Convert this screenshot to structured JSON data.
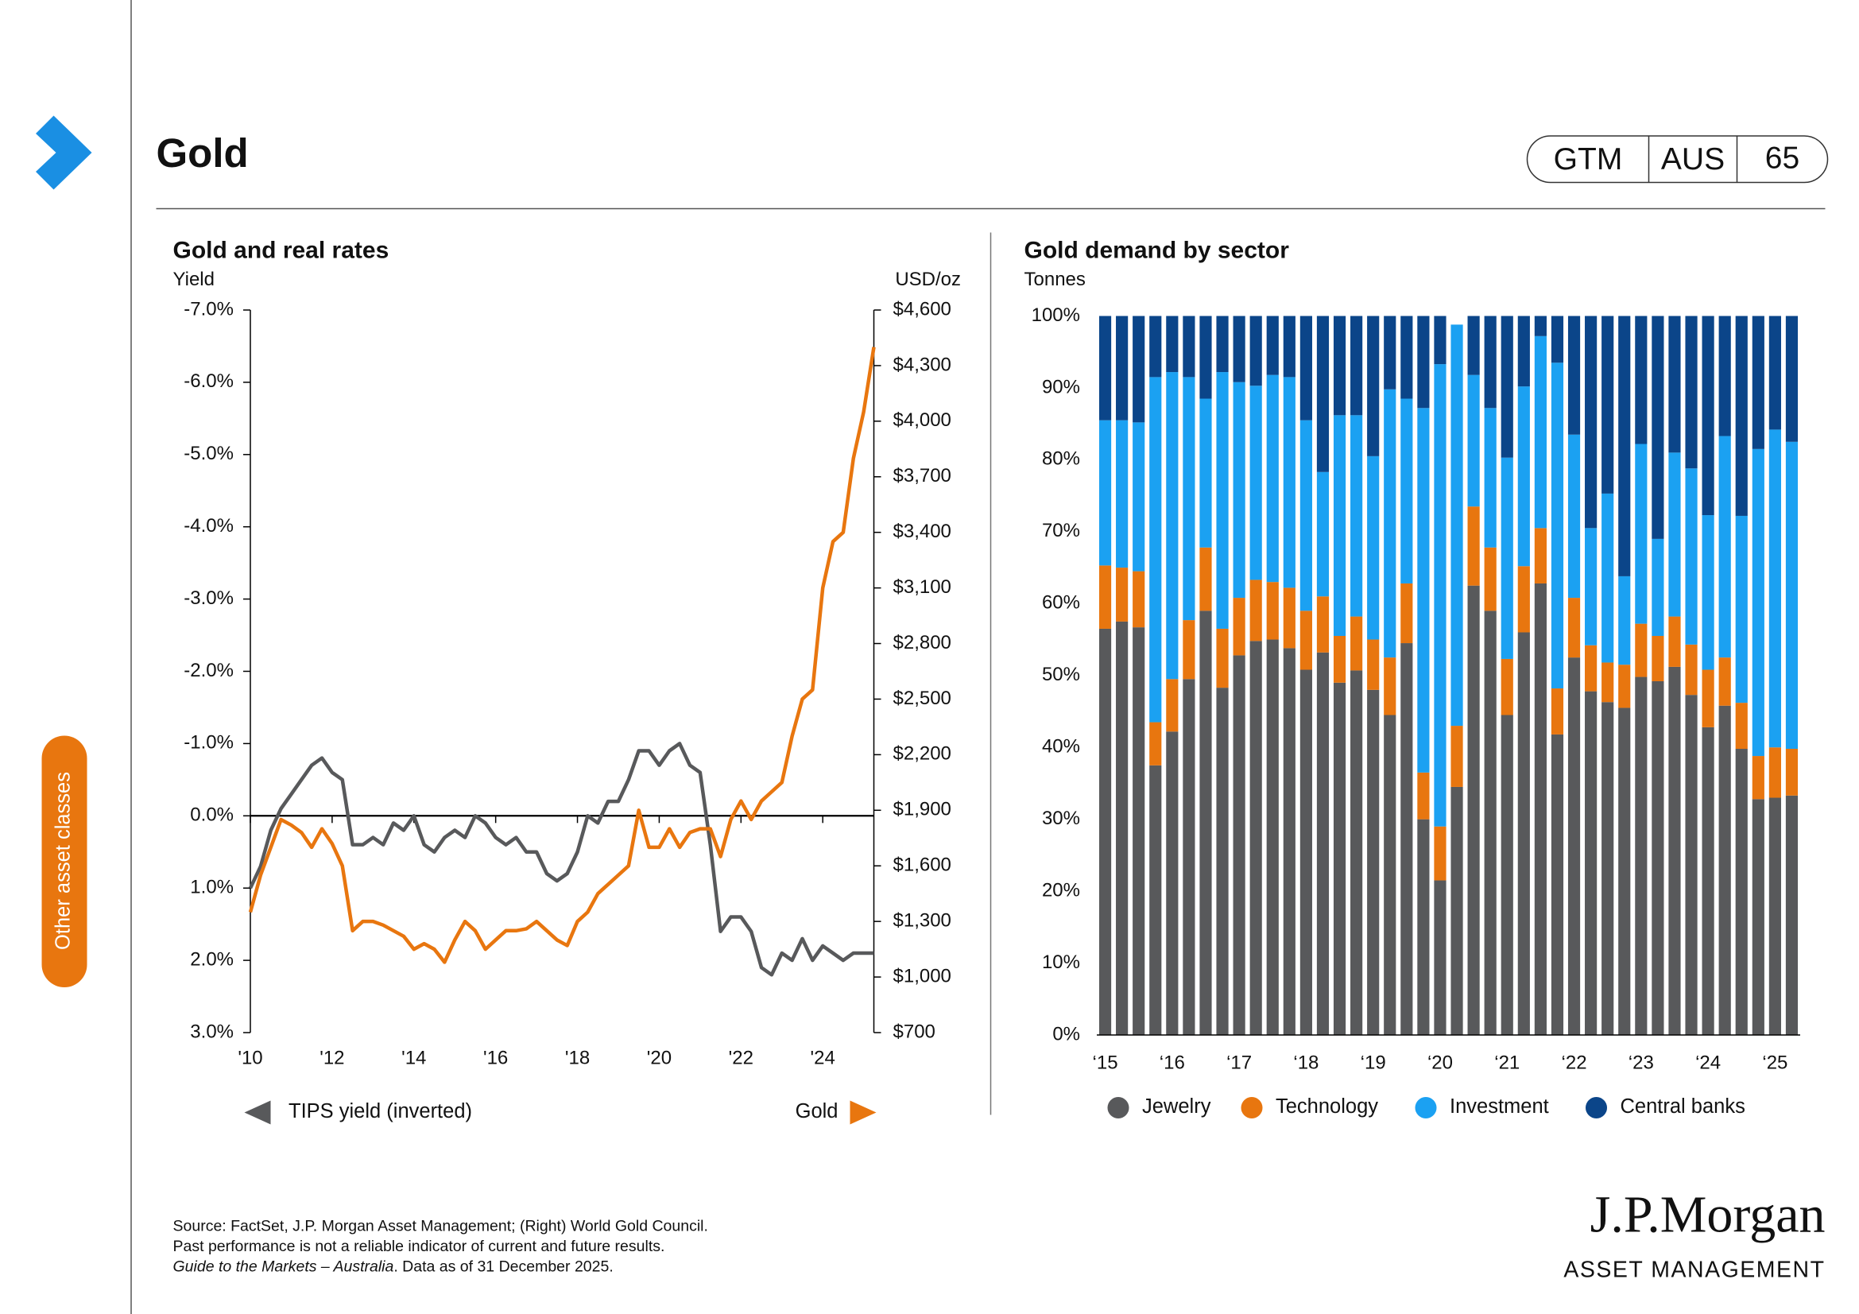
{
  "header": {
    "title": "Gold",
    "badge": [
      "GTM",
      "AUS",
      "65"
    ]
  },
  "sidebar": {
    "tab": "Other asset classes"
  },
  "chart_data": [
    {
      "type": "line",
      "title": "Gold and real rates",
      "y_label": "Yield",
      "y2_label": "USD/oz",
      "x": [
        2010,
        2010.25,
        2010.5,
        2010.75,
        2011,
        2011.25,
        2011.5,
        2011.75,
        2012,
        2012.25,
        2012.5,
        2012.75,
        2013,
        2013.25,
        2013.5,
        2013.75,
        2014,
        2014.25,
        2014.5,
        2014.75,
        2015,
        2015.25,
        2015.5,
        2015.75,
        2016,
        2016.25,
        2016.5,
        2016.75,
        2017,
        2017.25,
        2017.5,
        2017.75,
        2018,
        2018.25,
        2018.5,
        2018.75,
        2019,
        2019.25,
        2019.5,
        2019.75,
        2020,
        2020.25,
        2020.5,
        2020.75,
        2021,
        2021.25,
        2021.5,
        2021.75,
        2022,
        2022.25,
        2022.5,
        2022.75,
        2023,
        2023.25,
        2023.5,
        2023.75,
        2024,
        2024.25,
        2024.5,
        2024.75,
        2025,
        2025.25
      ],
      "xlim": [
        2010,
        2025.25
      ],
      "xticks": [
        {
          "value": 2010,
          "label": "'10"
        },
        {
          "value": 2012,
          "label": "'12"
        },
        {
          "value": 2014,
          "label": "'14"
        },
        {
          "value": 2016,
          "label": "'16"
        },
        {
          "value": 2018,
          "label": "'18"
        },
        {
          "value": 2020,
          "label": "'20"
        },
        {
          "value": 2022,
          "label": "'22"
        },
        {
          "value": 2024,
          "label": "'24"
        }
      ],
      "ylim": [
        -7,
        3
      ],
      "y_inverted": true,
      "yticks": [
        {
          "value": -7,
          "label": "-7.0%"
        },
        {
          "value": -6,
          "label": "-6.0%"
        },
        {
          "value": -5,
          "label": "-5.0%"
        },
        {
          "value": -4,
          "label": "-4.0%"
        },
        {
          "value": -3,
          "label": "-3.0%"
        },
        {
          "value": -2,
          "label": "-2.0%"
        },
        {
          "value": -1,
          "label": "-1.0%"
        },
        {
          "value": 0,
          "label": "0.0%"
        },
        {
          "value": 1,
          "label": "1.0%"
        },
        {
          "value": 2,
          "label": "2.0%"
        },
        {
          "value": 3,
          "label": "3.0%"
        }
      ],
      "y2lim": [
        700,
        4600
      ],
      "y2ticks": [
        {
          "value": 700,
          "label": "$700"
        },
        {
          "value": 1000,
          "label": "$1,000"
        },
        {
          "value": 1300,
          "label": "$1,300"
        },
        {
          "value": 1600,
          "label": "$1,600"
        },
        {
          "value": 1900,
          "label": "$1,900"
        },
        {
          "value": 2200,
          "label": "$2,200"
        },
        {
          "value": 2500,
          "label": "$2,500"
        },
        {
          "value": 2800,
          "label": "$2,800"
        },
        {
          "value": 3100,
          "label": "$3,100"
        },
        {
          "value": 3400,
          "label": "$3,400"
        },
        {
          "value": 3700,
          "label": "$3,700"
        },
        {
          "value": 4000,
          "label": "$4,000"
        },
        {
          "value": 4300,
          "label": "$4,300"
        },
        {
          "value": 4600,
          "label": "$4,600"
        }
      ],
      "series": [
        {
          "name": "TIPS yield (inverted)",
          "color": "#58595b",
          "axis": "y",
          "values": [
            1.0,
            0.7,
            0.2,
            -0.1,
            -0.3,
            -0.5,
            -0.7,
            -0.8,
            -0.6,
            -0.5,
            0.4,
            0.4,
            0.3,
            0.4,
            0.1,
            0.2,
            0.0,
            0.4,
            0.5,
            0.3,
            0.2,
            0.3,
            0.0,
            0.1,
            0.3,
            0.4,
            0.3,
            0.5,
            0.5,
            0.8,
            0.9,
            0.8,
            0.5,
            0.0,
            0.1,
            -0.2,
            -0.2,
            -0.5,
            -0.9,
            -0.9,
            -0.7,
            -0.9,
            -1.0,
            -0.7,
            -0.6,
            0.4,
            1.6,
            1.4,
            1.4,
            1.6,
            2.1,
            2.2,
            1.9,
            2.0,
            1.7,
            2.0,
            1.8,
            1.9,
            2.0,
            1.9,
            1.9,
            1.9
          ]
        },
        {
          "name": "Gold",
          "color": "#e8760f",
          "axis": "y2",
          "values": [
            1350,
            1550,
            1700,
            1850,
            1820,
            1780,
            1700,
            1800,
            1720,
            1600,
            1250,
            1300,
            1300,
            1280,
            1250,
            1220,
            1150,
            1180,
            1150,
            1080,
            1200,
            1300,
            1250,
            1150,
            1200,
            1250,
            1250,
            1260,
            1300,
            1250,
            1200,
            1170,
            1300,
            1350,
            1450,
            1500,
            1550,
            1600,
            1900,
            1700,
            1700,
            1800,
            1700,
            1780,
            1800,
            1800,
            1650,
            1850,
            1950,
            1850,
            1950,
            2000,
            2050,
            2300,
            2500,
            2550,
            3100,
            3350,
            3400,
            3800,
            4050,
            4400
          ]
        }
      ]
    },
    {
      "type": "bar",
      "stacked": true,
      "title": "Gold demand by sector",
      "y_label": "Tonnes",
      "categories": [
        "‘15",
        null,
        null,
        null,
        "‘16",
        null,
        null,
        null,
        "‘17",
        null,
        null,
        null,
        "‘18",
        null,
        null,
        null,
        "‘19",
        null,
        null,
        null,
        "‘20",
        null,
        null,
        null,
        "‘21",
        null,
        null,
        null,
        "‘22",
        null,
        null,
        null,
        "‘23",
        null,
        null,
        null,
        "‘24",
        null,
        null,
        null,
        "‘25",
        null
      ],
      "ylim": [
        0,
        100
      ],
      "yticks": [
        {
          "value": 0,
          "label": "0%"
        },
        {
          "value": 10,
          "label": "10%"
        },
        {
          "value": 20,
          "label": "20%"
        },
        {
          "value": 30,
          "label": "30%"
        },
        {
          "value": 40,
          "label": "40%"
        },
        {
          "value": 50,
          "label": "50%"
        },
        {
          "value": 60,
          "label": "60%"
        },
        {
          "value": 70,
          "label": "70%"
        },
        {
          "value": 80,
          "label": "80%"
        },
        {
          "value": 90,
          "label": "90%"
        },
        {
          "value": 100,
          "label": "100%"
        }
      ],
      "series": [
        {
          "name": "Jewelry",
          "color": "#58595b",
          "values": [
            56.5,
            57.5,
            56.7,
            37.5,
            42.2,
            49.5,
            59.0,
            48.3,
            52.8,
            54.8,
            55.0,
            53.8,
            50.8,
            53.2,
            49.0,
            50.7,
            48.0,
            44.5,
            54.5,
            30.0,
            21.5,
            34.5,
            62.5,
            59.0,
            44.5,
            56.0,
            62.8,
            41.8,
            52.5,
            47.8,
            46.3,
            45.5,
            49.8,
            49.2,
            51.2,
            47.3,
            42.8,
            45.8,
            39.8,
            32.8,
            33.0,
            33.3
          ]
        },
        {
          "name": "Technology",
          "color": "#e8760f",
          "values": [
            8.8,
            7.5,
            7.8,
            6.0,
            7.3,
            8.2,
            8.8,
            8.2,
            8.0,
            8.5,
            8.0,
            8.4,
            8.2,
            7.8,
            6.5,
            7.5,
            7.0,
            8.0,
            8.3,
            6.5,
            7.5,
            8.5,
            11.0,
            8.8,
            7.8,
            9.2,
            7.7,
            6.4,
            8.3,
            6.4,
            5.5,
            6.0,
            7.4,
            6.3,
            7.0,
            7.0,
            8.0,
            6.7,
            6.4,
            6.0,
            7.0,
            6.5
          ]
        },
        {
          "name": "Investment",
          "color": "#1ba1f2",
          "values": [
            20.2,
            20.5,
            20.7,
            48.0,
            42.7,
            33.8,
            20.7,
            35.7,
            30.0,
            27.0,
            28.8,
            29.3,
            26.5,
            17.3,
            30.7,
            28.0,
            25.5,
            37.3,
            25.7,
            50.7,
            64.3,
            55.8,
            18.3,
            19.4,
            28.0,
            25.0,
            26.7,
            45.3,
            22.7,
            16.3,
            23.5,
            12.3,
            25.0,
            13.5,
            22.8,
            24.5,
            21.5,
            30.8,
            26.0,
            42.7,
            44.2,
            42.7
          ]
        },
        {
          "name": "Central banks",
          "color": "#0b4589",
          "values": [
            14.5,
            14.5,
            14.8,
            8.5,
            7.8,
            8.5,
            11.5,
            7.8,
            9.2,
            9.7,
            8.2,
            8.5,
            14.5,
            21.7,
            13.8,
            13.8,
            19.5,
            10.2,
            11.5,
            12.8,
            6.7,
            0,
            8.2,
            12.8,
            19.7,
            9.8,
            2.8,
            6.5,
            16.5,
            29.5,
            24.7,
            36.2,
            17.8,
            31.0,
            19.0,
            21.2,
            27.7,
            16.7,
            27.8,
            18.5,
            15.8,
            17.5
          ]
        }
      ]
    }
  ],
  "footer": {
    "source": "Source: FactSet, J.P. Morgan Asset Management; (Right) World Gold Council.",
    "disclaimer": "Past performance is not a reliable indicator of current and future results.",
    "publication": "Guide to the Markets – Australia",
    "as_of": ". Data as of 31 December 2025."
  },
  "logo": {
    "name": "J.P.Morgan",
    "tagline": "ASSET MANAGEMENT"
  }
}
